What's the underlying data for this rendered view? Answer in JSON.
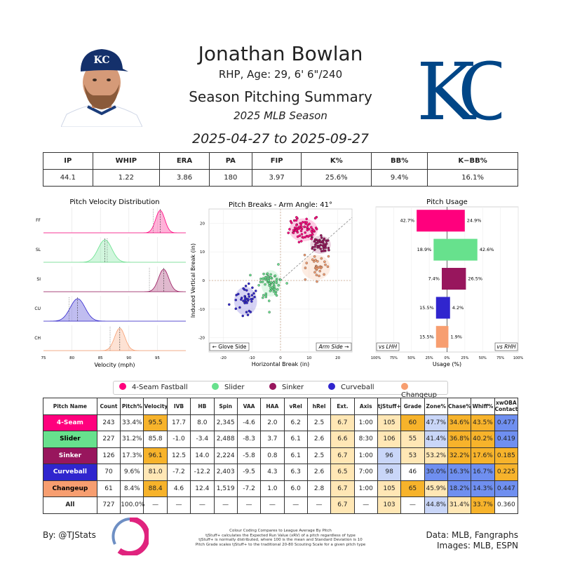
{
  "header": {
    "name": "Jonathan Bowlan",
    "bio": "RHP, Age: 29, 6' 6\"/240",
    "title": "Season Pitching Summary",
    "season": "2025 MLB Season",
    "dates": "2025-04-27 to 2025-09-27",
    "team_logo_text": "KC"
  },
  "season_stats": {
    "headers": [
      "IP",
      "WHIP",
      "ERA",
      "PA",
      "FIP",
      "K%",
      "BB%",
      "K−BB%"
    ],
    "values": [
      "44.1",
      "1.22",
      "3.86",
      "180",
      "3.97",
      "25.6%",
      "9.4%",
      "16.1%"
    ]
  },
  "colors": {
    "4-Seam": "#FF007D",
    "Slider": "#67E18D",
    "Sinker": "#98165D",
    "Curveball": "#3025CE",
    "Changeup": "#F79E70",
    "good": "#6F8FF0",
    "good_light": "#C9D6F8",
    "bad": "#F7B32B",
    "bad_light": "#FFE7B5"
  },
  "chart_data": [
    {
      "type": "area",
      "title": "Pitch Velocity Distribution",
      "xlabel": "Velocity (mph)",
      "xlim": [
        75,
        100
      ],
      "xticks": [
        "75",
        "80",
        "85",
        "90",
        "95"
      ],
      "series": [
        {
          "name": "FF",
          "mean": 95.5,
          "sd": 0.8,
          "league_mean": 94.3
        },
        {
          "name": "SL",
          "mean": 85.8,
          "sd": 1.2,
          "league_mean": 86.2
        },
        {
          "name": "SI",
          "mean": 96.1,
          "sd": 0.9,
          "league_mean": 93.6
        },
        {
          "name": "CU",
          "mean": 81.0,
          "sd": 1.3,
          "league_mean": 79.5
        },
        {
          "name": "CH",
          "mean": 88.4,
          "sd": 0.9,
          "league_mean": 86.7
        }
      ]
    },
    {
      "type": "scatter",
      "title": "Pitch Breaks - Arm Angle: 41°",
      "xlabel": "Horizontal Break (in)",
      "ylabel": "Induced Vertical Break (in)",
      "xlim": [
        -25,
        25
      ],
      "ylim": [
        -25,
        25
      ],
      "xticks": [
        "-20",
        "-10",
        "0",
        "10",
        "20"
      ],
      "yticks": [
        "20",
        "10",
        "0",
        "-10",
        "-20"
      ],
      "annotations": [
        "← Glove Side",
        "Arm Side →"
      ],
      "series": [
        {
          "name": "4-Seam",
          "hb": 8.0,
          "ivb": 17.7,
          "count": 70,
          "sx": 2.5,
          "sy": 2.0
        },
        {
          "name": "Slider",
          "hb": -3.4,
          "ivb": -1.0,
          "count": 68,
          "sx": 1.7,
          "sy": 2.3
        },
        {
          "name": "Sinker",
          "hb": 14.0,
          "ivb": 12.5,
          "count": 45,
          "sx": 1.8,
          "sy": 1.6
        },
        {
          "name": "Curveball",
          "hb": -12.2,
          "ivb": -7.2,
          "count": 40,
          "sx": 2.0,
          "sy": 2.5
        },
        {
          "name": "Changeup",
          "hb": 12.4,
          "ivb": 4.6,
          "count": 30,
          "sx": 2.5,
          "sy": 2.2
        }
      ]
    },
    {
      "type": "bar",
      "title": "Pitch Usage",
      "xlabel": "Usage (%)",
      "xticks": [
        "100%",
        "75%",
        "50%",
        "25%",
        "0%",
        "25%",
        "50%",
        "75%",
        "100%"
      ],
      "annotations": [
        "vs LHH",
        "vs RHH"
      ],
      "categories": [
        "4-Seam",
        "Slider",
        "Sinker",
        "Curveball",
        "Changeup"
      ],
      "lhh": [
        42.7,
        18.9,
        7.4,
        15.5,
        15.5
      ],
      "rhh": [
        24.9,
        42.6,
        26.5,
        4.2,
        1.9
      ]
    }
  ],
  "legend": [
    "4-Seam Fastball",
    "Slider",
    "Sinker",
    "Curveball",
    "Changeup"
  ],
  "pitch_table": {
    "headers": [
      "Pitch Name",
      "Count",
      "Pitch%",
      "Velocity",
      "IVB",
      "HB",
      "Spin",
      "VAA",
      "HAA",
      "vRel",
      "hRel",
      "Ext.",
      "Axis",
      "tjStuff+",
      "Grade",
      "Zone%",
      "Chase%",
      "Whiff%",
      "xwOBA Contact"
    ],
    "rows": [
      {
        "name": "4-Seam",
        "cells": [
          "243",
          "33.4%",
          "95.5",
          "17.7",
          "8.0",
          "2,345",
          "-4.6",
          "2.0",
          "6.2",
          "2.5",
          "6.7",
          "1:00",
          "105",
          "60",
          "47.7%",
          "34.6%",
          "43.5%",
          "0.477"
        ],
        "shade": [
          "",
          "",
          "b",
          "",
          "",
          "",
          "",
          "",
          "",
          "",
          "bl",
          "",
          "bl",
          "b",
          "gl",
          "b",
          "b",
          "g"
        ]
      },
      {
        "name": "Slider",
        "cells": [
          "227",
          "31.2%",
          "85.8",
          "-1.0",
          "-3.4",
          "2,488",
          "-8.3",
          "3.7",
          "6.1",
          "2.6",
          "6.6",
          "8:30",
          "106",
          "55",
          "41.4%",
          "36.8%",
          "40.2%",
          "0.419"
        ],
        "shade": [
          "",
          "",
          "",
          "",
          "",
          "",
          "",
          "",
          "",
          "",
          "bl",
          "",
          "bl",
          "bl",
          "gl",
          "b",
          "b",
          "g"
        ]
      },
      {
        "name": "Sinker",
        "cells": [
          "126",
          "17.3%",
          "96.1",
          "12.5",
          "14.0",
          "2,224",
          "-5.8",
          "0.8",
          "6.1",
          "2.5",
          "6.7",
          "1:00",
          "96",
          "53",
          "53.2%",
          "32.2%",
          "17.6%",
          "0.185"
        ],
        "shade": [
          "",
          "",
          "b",
          "",
          "",
          "",
          "",
          "",
          "",
          "",
          "bl",
          "",
          "gl",
          "bl",
          "bl",
          "b",
          "b",
          "b"
        ]
      },
      {
        "name": "Curveball",
        "cells": [
          "70",
          "9.6%",
          "81.0",
          "-7.2",
          "-12.2",
          "2,403",
          "-9.5",
          "4.3",
          "6.3",
          "2.6",
          "6.5",
          "7:00",
          "98",
          "46",
          "30.0%",
          "16.3%",
          "16.7%",
          "0.225"
        ],
        "shade": [
          "",
          "",
          "bl",
          "",
          "",
          "",
          "",
          "",
          "",
          "",
          "bl",
          "",
          "gl",
          "",
          "g",
          "g",
          "g",
          "b"
        ]
      },
      {
        "name": "Changeup",
        "cells": [
          "61",
          "8.4%",
          "88.4",
          "4.6",
          "12.4",
          "1,519",
          "-7.2",
          "1.0",
          "6.0",
          "2.8",
          "6.7",
          "1:00",
          "105",
          "65",
          "45.9%",
          "18.2%",
          "14.3%",
          "0.447"
        ],
        "shade": [
          "",
          "",
          "b",
          "",
          "",
          "",
          "",
          "",
          "",
          "",
          "bl",
          "",
          "bl",
          "b",
          "bl",
          "g",
          "g",
          "g"
        ]
      },
      {
        "name": "All",
        "cells": [
          "727",
          "100.0%",
          "—",
          "—",
          "—",
          "—",
          "—",
          "—",
          "—",
          "—",
          "6.7",
          "—",
          "103",
          "—",
          "44.8%",
          "31.4%",
          "33.7%",
          "0.360"
        ],
        "shade": [
          "",
          "",
          "",
          "",
          "",
          "",
          "",
          "",
          "",
          "",
          "bl",
          "",
          "bl",
          "",
          "gl",
          "bl",
          "b",
          ""
        ]
      }
    ]
  },
  "footer": {
    "left": "By: @TJStats",
    "note": [
      "Colour Coding Compares to League Average By Pitch",
      "tjStuff+ calculates the Expected Run Value (xRV) of a pitch regardless of type",
      "tjStuff+ is normally distributed, where 100 is the mean and Standard Deviation is 10",
      "Pitch Grade scales tjStuff+ to the traditional 20-80 Scouting Scale for a given pitch type"
    ],
    "right1": "Data: MLB, Fangraphs",
    "right2": "Images: MLB, ESPN"
  }
}
